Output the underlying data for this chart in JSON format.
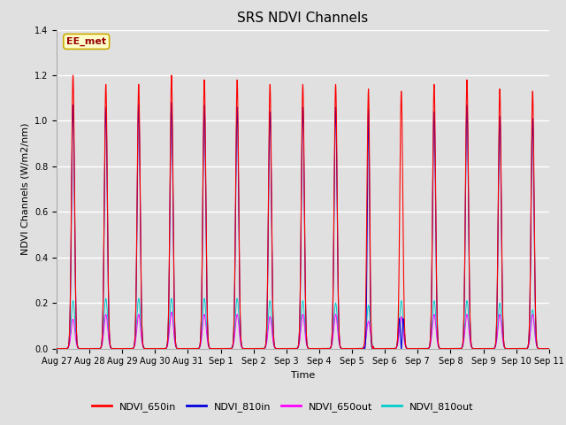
{
  "title": "SRS NDVI Channels",
  "ylabel": "NDVI Channels (W/m2/nm)",
  "xlabel": "Time",
  "ylim": [
    0.0,
    1.4
  ],
  "yticks": [
    0.0,
    0.2,
    0.4,
    0.6,
    0.8,
    1.0,
    1.2,
    1.4
  ],
  "xtick_labels": [
    "Aug 27",
    "Aug 28",
    "Aug 29",
    "Aug 30",
    "Aug 31",
    "Sep 1",
    "Sep 2",
    "Sep 3",
    "Sep 4",
    "Sep 5",
    "Sep 6",
    "Sep 7",
    "Sep 8",
    "Sep 9",
    "Sep 10",
    "Sep 11"
  ],
  "background_color": "#e0e0e0",
  "plot_bg_color": "#e0e0e0",
  "grid_color": "#ffffff",
  "annotation_text": "EE_met",
  "annotation_box_facecolor": "#ffffcc",
  "annotation_box_edgecolor": "#ccaa00",
  "annotation_text_color": "#990000",
  "colors": {
    "NDVI_650in": "#ff0000",
    "NDVI_810in": "#0000dd",
    "NDVI_650out": "#ff00ff",
    "NDVI_810out": "#00cccc"
  },
  "legend_labels": [
    "NDVI_650in",
    "NDVI_810in",
    "NDVI_650out",
    "NDVI_810out"
  ],
  "num_days": 15,
  "peaks_650in": [
    1.2,
    1.16,
    1.16,
    1.2,
    1.18,
    1.18,
    1.16,
    1.16,
    1.16,
    1.14,
    1.13,
    1.16,
    1.18,
    1.14,
    1.13
  ],
  "peaks_810in": [
    1.07,
    1.06,
    1.07,
    1.08,
    1.07,
    1.06,
    1.04,
    1.06,
    1.06,
    1.05,
    1.04,
    1.04,
    1.07,
    1.02,
    1.01
  ],
  "peaks_650out": [
    0.13,
    0.15,
    0.15,
    0.16,
    0.15,
    0.15,
    0.14,
    0.15,
    0.15,
    0.12,
    0.14,
    0.15,
    0.15,
    0.15,
    0.15
  ],
  "peaks_810out": [
    0.21,
    0.22,
    0.22,
    0.22,
    0.22,
    0.22,
    0.21,
    0.21,
    0.2,
    0.19,
    0.21,
    0.21,
    0.21,
    0.2,
    0.17
  ],
  "sigma_in": 0.045,
  "sigma_out": 0.055,
  "title_fontsize": 11,
  "axis_fontsize": 8,
  "tick_fontsize": 7
}
